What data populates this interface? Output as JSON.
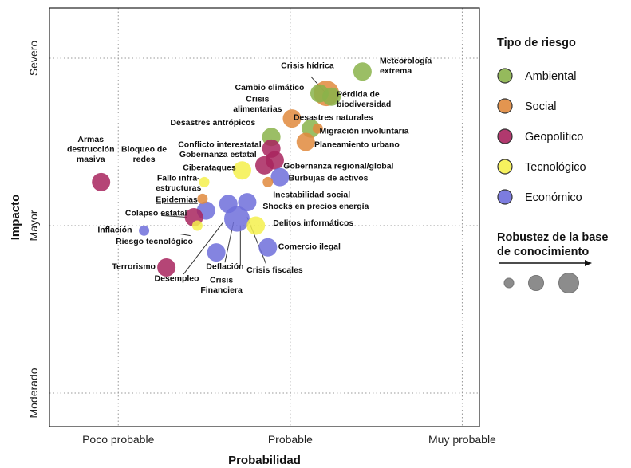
{
  "chart_data": {
    "type": "scatter",
    "xlabel": "Probabilidad",
    "ylabel": "Impacto",
    "x_ticks": [
      "Poco probable",
      "Probable",
      "Muy probable"
    ],
    "y_ticks": [
      "Moderado",
      "Mayor",
      "Severo"
    ],
    "xlim": [
      0.6,
      3.1
    ],
    "ylim": [
      0.8,
      3.3
    ],
    "legend": {
      "title": "Tipo de riesgo",
      "placement": "right",
      "items": [
        {
          "name": "Ambiental",
          "color": "#8ab34a"
        },
        {
          "name": "Social",
          "color": "#e0893d"
        },
        {
          "name": "Geopolítico",
          "color": "#a8245e"
        },
        {
          "name": "Tecnológico",
          "color": "#f5f04c"
        },
        {
          "name": "Económico",
          "color": "#6e6edb"
        }
      ]
    },
    "size_legend": {
      "title_line1": "Robustez de la base",
      "title_line2": "de conocimiento",
      "levels": [
        1,
        2,
        3
      ]
    },
    "points": [
      {
        "label": "Meteorología extrema",
        "category": "Ambiental",
        "x": 2.42,
        "y": 2.92,
        "size": 2
      },
      {
        "label": "Crisis hídrica",
        "category": "Ambiental",
        "x": 2.17,
        "y": 2.79,
        "size": 2
      },
      {
        "label": "Cambio climático",
        "category": "Social",
        "x": 2.21,
        "y": 2.79,
        "size": 3
      },
      {
        "label": "Pérdida de biodiversidad",
        "category": "Ambiental",
        "x": 2.24,
        "y": 2.77,
        "size": 2
      },
      {
        "label": "Crisis alimentarias",
        "category": "Social",
        "x": 2.01,
        "y": 2.64,
        "size": 2
      },
      {
        "label": "Desastres naturales",
        "category": "Ambiental",
        "x": 2.12,
        "y": 2.58,
        "size": 2
      },
      {
        "label": "Migración involuntaria",
        "category": "Social",
        "x": 2.16,
        "y": 2.58,
        "size": 1
      },
      {
        "label": "Planeamiento urbano",
        "category": "Social",
        "x": 2.09,
        "y": 2.5,
        "size": 2
      },
      {
        "label": "Desastres antrópicos",
        "category": "Ambiental",
        "x": 1.89,
        "y": 2.53,
        "size": 2
      },
      {
        "label": "Conflicto interestatal",
        "category": "Geopolítico",
        "x": 1.89,
        "y": 2.46,
        "size": 2
      },
      {
        "label": "Gobernanza regional/global",
        "category": "Geopolítico",
        "x": 1.91,
        "y": 2.39,
        "size": 2
      },
      {
        "label": "Gobernanza estatal",
        "category": "Geopolítico",
        "x": 1.85,
        "y": 2.36,
        "size": 2
      },
      {
        "label": "Ciberataques",
        "category": "Tecnológico",
        "x": 1.72,
        "y": 2.33,
        "size": 2
      },
      {
        "label": "Burbujas de activos",
        "category": "Económico",
        "x": 1.94,
        "y": 2.29,
        "size": 2
      },
      {
        "label": "Inestabilidad social",
        "category": "Social",
        "x": 1.87,
        "y": 2.26,
        "size": 1
      },
      {
        "label": "Fallo infra-estructuras",
        "category": "Tecnológico",
        "x": 1.5,
        "y": 2.26,
        "size": 1
      },
      {
        "label": "Epidemias",
        "category": "Social",
        "x": 1.49,
        "y": 2.16,
        "size": 1
      },
      {
        "label": "Armas destrucción masiva",
        "category": "Geopolítico",
        "x": 0.9,
        "y": 2.26,
        "size": 2
      },
      {
        "label": "Bloqueo de redes",
        "category": "Económico",
        "x": 1.51,
        "y": 2.09,
        "size": 2
      },
      {
        "label": "Colapso estatal",
        "category": "Geopolítico",
        "x": 1.44,
        "y": 2.05,
        "size": 2
      },
      {
        "label": "Shocks en precios energía",
        "category": "Económico",
        "x": 1.75,
        "y": 2.14,
        "size": 2
      },
      {
        "label": "Desempleo",
        "category": "Económico",
        "x": 1.64,
        "y": 2.13,
        "size": 2
      },
      {
        "label": "Crisis Financiera",
        "category": "Económico",
        "x": 1.69,
        "y": 2.04,
        "size": 3
      },
      {
        "label": "Delitos informáticos",
        "category": "Tecnológico",
        "x": 1.8,
        "y": 2.0,
        "size": 2
      },
      {
        "label": "Inflación",
        "category": "Económico",
        "x": 1.15,
        "y": 1.97,
        "size": 1
      },
      {
        "label": "Riesgo tecnológico",
        "category": "Tecnológico",
        "x": 1.46,
        "y": 2.0,
        "size": 1
      },
      {
        "label": "Comercio ilegal",
        "category": "Económico",
        "x": 1.87,
        "y": 1.87,
        "size": 2
      },
      {
        "label": "Deflación",
        "category": "Económico",
        "x": 1.57,
        "y": 1.84,
        "size": 2
      },
      {
        "label": "Terrorismo",
        "category": "Geopolítico",
        "x": 1.28,
        "y": 1.75,
        "size": 2
      }
    ],
    "labels": [
      {
        "text": "Meteorología",
        "tx": 2.52,
        "ty": 2.97,
        "anchor": "start"
      },
      {
        "text": "extrema",
        "tx": 2.52,
        "ty": 2.91,
        "anchor": "start"
      },
      {
        "text": "Crisis hídrica",
        "tx": 2.1,
        "ty": 2.94,
        "anchor": "middle"
      },
      {
        "text": "Cambio climático",
        "tx": 1.88,
        "ty": 2.81,
        "anchor": "middle"
      },
      {
        "text": "Pérdida de",
        "tx": 2.27,
        "ty": 2.77,
        "anchor": "start"
      },
      {
        "text": "biodiversidad",
        "tx": 2.27,
        "ty": 2.71,
        "anchor": "start"
      },
      {
        "text": "Crisis",
        "tx": 1.81,
        "ty": 2.74,
        "anchor": "middle"
      },
      {
        "text": "alimentarias",
        "tx": 1.81,
        "ty": 2.68,
        "anchor": "middle"
      },
      {
        "text": "Desastres naturales",
        "tx": 2.25,
        "ty": 2.63,
        "anchor": "middle"
      },
      {
        "text": "Desastres antrópicos",
        "tx": 1.55,
        "ty": 2.6,
        "anchor": "middle"
      },
      {
        "text": "Migración involuntaria",
        "tx": 2.17,
        "ty": 2.55,
        "anchor": "start"
      },
      {
        "text": "Conflicto interestatal",
        "tx": 1.59,
        "ty": 2.47,
        "anchor": "middle"
      },
      {
        "text": "Planeamiento urbano",
        "tx": 2.14,
        "ty": 2.47,
        "anchor": "start"
      },
      {
        "text": "Gobernanza estatal",
        "tx": 1.58,
        "ty": 2.41,
        "anchor": "middle"
      },
      {
        "text": "Gobernanza regional/global",
        "tx": 1.96,
        "ty": 2.34,
        "anchor": "start"
      },
      {
        "text": "Ciberataques",
        "tx": 1.53,
        "ty": 2.33,
        "anchor": "middle"
      },
      {
        "text": "Burbujas de activos",
        "tx": 1.99,
        "ty": 2.27,
        "anchor": "start"
      },
      {
        "text": "Fallo infra-",
        "tx": 1.35,
        "ty": 2.27,
        "anchor": "middle"
      },
      {
        "text": "estructuras",
        "tx": 1.35,
        "ty": 2.21,
        "anchor": "middle"
      },
      {
        "text": "Epidemias",
        "tx": 1.34,
        "ty": 2.14,
        "anchor": "middle",
        "underline": true
      },
      {
        "text": "Inestabilidad social",
        "tx": 1.9,
        "ty": 2.17,
        "anchor": "start"
      },
      {
        "text": "Shocks en precios energía",
        "tx": 1.84,
        "ty": 2.1,
        "anchor": "start"
      },
      {
        "text": "Colapso estatal",
        "tx": 1.22,
        "ty": 2.06,
        "anchor": "middle"
      },
      {
        "text": "Delitos informáticos",
        "tx": 1.9,
        "ty": 2.0,
        "anchor": "start"
      },
      {
        "text": "Inflación",
        "tx": 1.08,
        "ty": 1.96,
        "anchor": "end"
      },
      {
        "text": "Riesgo tecnológico",
        "tx": 1.21,
        "ty": 1.89,
        "anchor": "middle"
      },
      {
        "text": "Comercio ilegal",
        "tx": 1.93,
        "ty": 1.86,
        "anchor": "start"
      },
      {
        "text": "Terrorismo",
        "tx": 1.09,
        "ty": 1.74,
        "anchor": "middle"
      },
      {
        "text": "Deflación",
        "tx": 1.62,
        "ty": 1.74,
        "anchor": "middle"
      },
      {
        "text": "Crisis fiscales",
        "tx": 1.91,
        "ty": 1.72,
        "anchor": "middle"
      },
      {
        "text": "Desempleo",
        "tx": 1.34,
        "ty": 1.67,
        "anchor": "middle"
      },
      {
        "text": "Crisis",
        "tx": 1.6,
        "ty": 1.66,
        "anchor": "middle"
      },
      {
        "text": "Financiera",
        "tx": 1.6,
        "ty": 1.6,
        "anchor": "middle"
      },
      {
        "text": "Armas",
        "tx": 0.84,
        "ty": 2.5,
        "anchor": "middle"
      },
      {
        "text": "destrucción",
        "tx": 0.84,
        "ty": 2.44,
        "anchor": "middle"
      },
      {
        "text": "masiva",
        "tx": 0.84,
        "ty": 2.38,
        "anchor": "middle"
      },
      {
        "text": "Bloqueo de",
        "tx": 1.15,
        "ty": 2.44,
        "anchor": "middle"
      },
      {
        "text": "redes",
        "tx": 1.15,
        "ty": 2.38,
        "anchor": "middle"
      }
    ],
    "leaders": [
      {
        "from": [
          2.12,
          2.89
        ],
        "to": [
          2.2,
          2.8
        ]
      },
      {
        "from": [
          1.25,
          2.06
        ],
        "to": [
          1.4,
          2.05
        ]
      },
      {
        "from": [
          1.36,
          1.95
        ],
        "to": [
          1.42,
          1.94
        ]
      },
      {
        "from": [
          1.38,
          1.71
        ],
        "to": [
          1.61,
          2.02
        ]
      },
      {
        "from": [
          1.62,
          1.78
        ],
        "to": [
          1.67,
          2.02
        ]
      },
      {
        "from": [
          1.71,
          1.76
        ],
        "to": [
          1.71,
          2.0
        ]
      },
      {
        "from": [
          1.86,
          1.77
        ],
        "to": [
          1.75,
          2.05
        ]
      }
    ]
  }
}
